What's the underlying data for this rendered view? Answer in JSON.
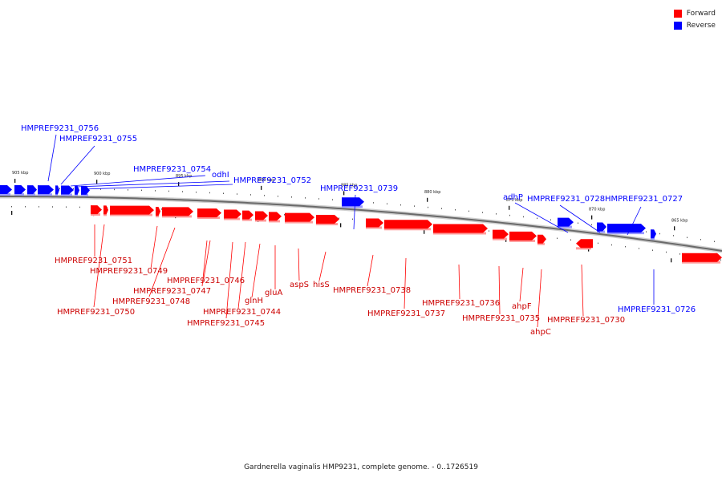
{
  "legend": {
    "forward": {
      "label": "Forward",
      "color": "#ff0000"
    },
    "reverse": {
      "label": "Reverse",
      "color": "#0000ff"
    }
  },
  "caption": "Gardnerella vaginalis HMP9231, complete genome. - 0..1726519",
  "ticks": [
    "905 kbp",
    "900 kbp",
    "895 kbp",
    "890 kbp",
    "885 kbp",
    "880 kbp",
    "875 kbp",
    "870 kbp",
    "865 kbp"
  ],
  "genes": [
    {
      "label": "HMPREF9231_0756",
      "strand": "reverse"
    },
    {
      "label": "HMPREF9231_0755",
      "strand": "reverse"
    },
    {
      "label": "HMPREF9231_0754",
      "strand": "reverse"
    },
    {
      "label": "odhI",
      "strand": "reverse"
    },
    {
      "label": "HMPREF9231_0752",
      "strand": "reverse"
    },
    {
      "label": "HMPREF9231_0751",
      "strand": "forward"
    },
    {
      "label": "HMPREF9231_0750",
      "strand": "forward"
    },
    {
      "label": "HMPREF9231_0749",
      "strand": "forward"
    },
    {
      "label": "HMPREF9231_0748",
      "strand": "forward"
    },
    {
      "label": "HMPREF9231_0747",
      "strand": "forward"
    },
    {
      "label": "HMPREF9231_0746",
      "strand": "forward"
    },
    {
      "label": "HMPREF9231_0745",
      "strand": "forward"
    },
    {
      "label": "HMPREF9231_0744",
      "strand": "forward"
    },
    {
      "label": "glnH",
      "strand": "forward"
    },
    {
      "label": "gluA",
      "strand": "forward"
    },
    {
      "label": "aspS",
      "strand": "forward"
    },
    {
      "label": "hisS",
      "strand": "forward"
    },
    {
      "label": "HMPREF9231_0739",
      "strand": "reverse"
    },
    {
      "label": "HMPREF9231_0738",
      "strand": "forward"
    },
    {
      "label": "HMPREF9231_0737",
      "strand": "forward"
    },
    {
      "label": "HMPREF9231_0736",
      "strand": "forward"
    },
    {
      "label": "HMPREF9231_0735",
      "strand": "forward"
    },
    {
      "label": "ahpF",
      "strand": "forward"
    },
    {
      "label": "ahpC",
      "strand": "forward"
    },
    {
      "label": "adhP",
      "strand": "reverse"
    },
    {
      "label": "HMPREF9231_0728",
      "strand": "reverse"
    },
    {
      "label": "HMPREF9231_0727",
      "strand": "reverse"
    },
    {
      "label": "HMPREF9231_0730",
      "strand": "forward"
    },
    {
      "label": "HMPREF9231_0726",
      "strand": "reverse"
    }
  ]
}
